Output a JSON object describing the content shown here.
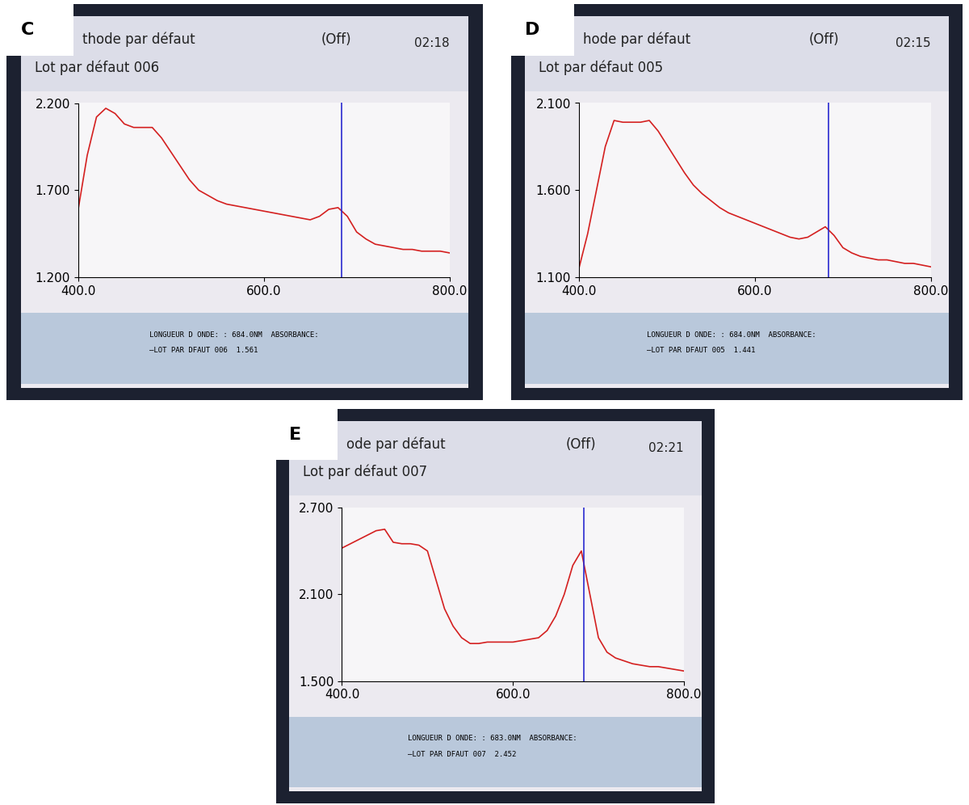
{
  "chart_data": [
    {
      "type": "line",
      "label": "C",
      "subtitle": "thode par défaut",
      "title": "Lot par défaut 006",
      "annotations": [
        "(Off)",
        "02:18",
        "LONGUEUR D ONDE: : 684.0NM  ABSORBANCE:",
        "—LOT PAR DFAUT 006  1.561"
      ],
      "color": "#d42020",
      "cursor": 684,
      "x": [
        400,
        410,
        420,
        430,
        440,
        450,
        460,
        470,
        480,
        490,
        500,
        510,
        520,
        530,
        540,
        550,
        560,
        570,
        580,
        590,
        600,
        610,
        620,
        630,
        640,
        650,
        660,
        670,
        680,
        690,
        700,
        710,
        720,
        730,
        740,
        750,
        760,
        770,
        780,
        790,
        800
      ],
      "values": [
        1.58,
        1.9,
        2.12,
        2.17,
        2.14,
        2.08,
        2.06,
        2.06,
        2.06,
        2.0,
        1.92,
        1.84,
        1.76,
        1.7,
        1.67,
        1.64,
        1.62,
        1.61,
        1.6,
        1.59,
        1.58,
        1.57,
        1.56,
        1.55,
        1.54,
        1.53,
        1.55,
        1.59,
        1.6,
        1.55,
        1.46,
        1.42,
        1.39,
        1.38,
        1.37,
        1.36,
        1.36,
        1.35,
        1.35,
        1.35,
        1.34
      ],
      "xlim": [
        400,
        800
      ],
      "ylim": [
        1.2,
        2.2
      ],
      "xticks": [
        {
          "value": 400,
          "label": "400.0"
        },
        {
          "value": 600,
          "label": "600.0"
        },
        {
          "value": 800,
          "label": "800.0"
        }
      ],
      "yticks": [
        {
          "value": 1.2,
          "label": "1.200"
        },
        {
          "value": 1.7,
          "label": "1.700"
        },
        {
          "value": 2.2,
          "label": "2.200"
        }
      ]
    },
    {
      "type": "line",
      "label": "D",
      "subtitle": "hode par défaut",
      "title": "Lot par défaut 005",
      "annotations": [
        "(Off)",
        "02:15",
        "LONGUEUR D ONDE: : 684.0NM  ABSORBANCE:",
        "—LOT PAR DFAUT 005  1.441"
      ],
      "color": "#d42020",
      "cursor": 684,
      "x": [
        400,
        410,
        420,
        430,
        440,
        450,
        460,
        470,
        480,
        490,
        500,
        510,
        520,
        530,
        540,
        550,
        560,
        570,
        580,
        590,
        600,
        610,
        620,
        630,
        640,
        650,
        660,
        670,
        680,
        690,
        700,
        710,
        720,
        730,
        740,
        750,
        760,
        770,
        780,
        790,
        800
      ],
      "values": [
        1.15,
        1.35,
        1.6,
        1.85,
        2.0,
        1.99,
        1.99,
        1.99,
        2.0,
        1.94,
        1.86,
        1.78,
        1.7,
        1.63,
        1.58,
        1.54,
        1.5,
        1.47,
        1.45,
        1.43,
        1.41,
        1.39,
        1.37,
        1.35,
        1.33,
        1.32,
        1.33,
        1.36,
        1.39,
        1.34,
        1.27,
        1.24,
        1.22,
        1.21,
        1.2,
        1.2,
        1.19,
        1.18,
        1.18,
        1.17,
        1.16
      ],
      "xlim": [
        400,
        800
      ],
      "ylim": [
        1.1,
        2.1
      ],
      "xticks": [
        {
          "value": 400,
          "label": "400.0"
        },
        {
          "value": 600,
          "label": "600.0"
        },
        {
          "value": 800,
          "label": "800.0"
        }
      ],
      "yticks": [
        {
          "value": 1.1,
          "label": "1.100"
        },
        {
          "value": 1.6,
          "label": "1.600"
        },
        {
          "value": 2.1,
          "label": "2.100"
        }
      ]
    },
    {
      "type": "line",
      "label": "E",
      "subtitle": "ode par défaut",
      "title": "Lot par défaut 007",
      "annotations": [
        "(Off)",
        "02:21",
        "LONGUEUR D ONDE: : 683.0NM  ABSORBANCE:",
        "—LOT PAR DFAUT 007  2.452"
      ],
      "color": "#d42020",
      "cursor": 683,
      "x": [
        400,
        410,
        420,
        430,
        440,
        450,
        460,
        470,
        480,
        490,
        500,
        510,
        520,
        530,
        540,
        550,
        560,
        570,
        580,
        590,
        600,
        610,
        620,
        630,
        640,
        650,
        660,
        670,
        680,
        690,
        700,
        710,
        720,
        730,
        740,
        750,
        760,
        770,
        780,
        790,
        800
      ],
      "values": [
        2.42,
        2.45,
        2.48,
        2.51,
        2.54,
        2.55,
        2.46,
        2.45,
        2.45,
        2.44,
        2.4,
        2.2,
        2.0,
        1.88,
        1.8,
        1.76,
        1.76,
        1.77,
        1.77,
        1.77,
        1.77,
        1.78,
        1.79,
        1.8,
        1.85,
        1.95,
        2.1,
        2.3,
        2.4,
        2.1,
        1.8,
        1.7,
        1.66,
        1.64,
        1.62,
        1.61,
        1.6,
        1.6,
        1.59,
        1.58,
        1.57
      ],
      "xlim": [
        400,
        800
      ],
      "ylim": [
        1.5,
        2.7
      ],
      "xticks": [
        {
          "value": 400,
          "label": "400.0"
        },
        {
          "value": 600,
          "label": "600.0"
        },
        {
          "value": 800,
          "label": "800.0"
        }
      ],
      "yticks": [
        {
          "value": 1.5,
          "label": "1.500"
        },
        {
          "value": 2.1,
          "label": "2.100"
        },
        {
          "value": 2.7,
          "label": "2.700"
        }
      ]
    }
  ]
}
